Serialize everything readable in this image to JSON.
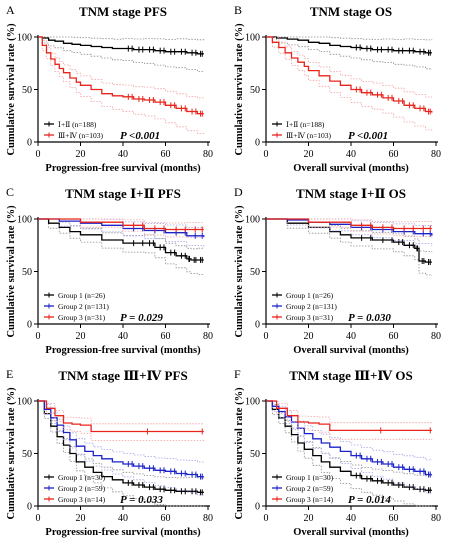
{
  "figure": {
    "colors": {
      "black": "#000000",
      "red": "#e8241c",
      "blue": "#1c24c8",
      "ci_black": "#8c8c8c",
      "ci_red": "#f0a0a0",
      "ci_blue": "#a0a4e8"
    }
  },
  "chart_data": [
    {
      "type": "line",
      "panel": "A",
      "title": "TNM stage PFS",
      "xlabel": "Progression-free survival (months)",
      "ylabel": "Cumulative survival rate (%)",
      "xlim": [
        0,
        80
      ],
      "ylim": [
        0,
        100
      ],
      "xticks": [
        "0",
        "20",
        "40",
        "60",
        "80"
      ],
      "yticks": [
        "0",
        "50",
        "100"
      ],
      "legend": [
        {
          "label": "Ⅰ+Ⅱ (n=188)",
          "color": "#000000"
        },
        {
          "label": "Ⅲ+Ⅳ (n=103)",
          "color": "#e8241c"
        }
      ],
      "pvalue": "P <0.001",
      "series": [
        {
          "color": "#000000",
          "x": [
            0,
            2,
            5,
            8,
            12,
            16,
            20,
            25,
            30,
            35,
            40,
            45,
            50,
            55,
            60,
            65,
            70,
            75,
            78
          ],
          "y": [
            100,
            99,
            97,
            96,
            94,
            93,
            92,
            91,
            90,
            89,
            89,
            88,
            88,
            87,
            86,
            86,
            85,
            84,
            84
          ]
        },
        {
          "color": "#e8241c",
          "x": [
            0,
            2,
            4,
            6,
            8,
            10,
            12,
            15,
            18,
            20,
            25,
            30,
            35,
            40,
            45,
            50,
            55,
            60,
            65,
            70,
            75,
            78
          ],
          "y": [
            100,
            92,
            85,
            79,
            74,
            70,
            66,
            61,
            57,
            54,
            50,
            46,
            44,
            43,
            41,
            40,
            38,
            35,
            32,
            29,
            27,
            27
          ]
        }
      ]
    },
    {
      "type": "line",
      "panel": "B",
      "title": "TNM stage OS",
      "xlabel": "Overall survival (months)",
      "ylabel": "Cumulative survival rate (%)",
      "xlim": [
        0,
        80
      ],
      "ylim": [
        0,
        100
      ],
      "xticks": [
        "0",
        "20",
        "40",
        "60",
        "80"
      ],
      "yticks": [
        "0",
        "50",
        "100"
      ],
      "legend": [
        {
          "label": "Ⅰ+Ⅱ (n=188)",
          "color": "#000000"
        },
        {
          "label": "Ⅲ+Ⅳ (n=103)",
          "color": "#e8241c"
        }
      ],
      "pvalue": "P <0.001",
      "series": [
        {
          "color": "#000000",
          "x": [
            0,
            5,
            10,
            15,
            20,
            25,
            30,
            35,
            40,
            45,
            50,
            55,
            60,
            65,
            70,
            75,
            78
          ],
          "y": [
            100,
            99,
            98,
            97,
            95,
            94,
            92,
            91,
            90,
            89,
            88,
            88,
            87,
            87,
            86,
            85,
            85
          ]
        },
        {
          "color": "#e8241c",
          "x": [
            0,
            3,
            6,
            9,
            12,
            15,
            18,
            20,
            25,
            30,
            35,
            40,
            45,
            50,
            55,
            60,
            65,
            70,
            75,
            78
          ],
          "y": [
            100,
            95,
            90,
            85,
            80,
            76,
            72,
            68,
            63,
            58,
            54,
            50,
            47,
            45,
            42,
            39,
            35,
            32,
            29,
            28
          ]
        }
      ]
    },
    {
      "type": "line",
      "panel": "C",
      "title": "TNM stage Ⅰ+Ⅱ PFS",
      "xlabel": "Progression-free survival (months)",
      "ylabel": "Cumulative survival rate (%)",
      "xlim": [
        0,
        80
      ],
      "ylim": [
        0,
        100
      ],
      "xticks": [
        "0",
        "20",
        "40",
        "60",
        "80"
      ],
      "yticks": [
        "0",
        "50",
        "100"
      ],
      "legend": [
        {
          "label": "Group 1 (n=26)",
          "color": "#000000"
        },
        {
          "label": "Group 2 (n=131)",
          "color": "#1c24c8"
        },
        {
          "label": "Group 3 (n=31)",
          "color": "#e8241c"
        }
      ],
      "pvalue": "P = 0.029",
      "series": [
        {
          "color": "#000000",
          "x": [
            0,
            5,
            10,
            15,
            20,
            30,
            40,
            50,
            55,
            60,
            65,
            70,
            72,
            75,
            78
          ],
          "y": [
            100,
            96,
            92,
            88,
            85,
            80,
            77,
            77,
            73,
            68,
            65,
            62,
            61,
            61,
            61
          ]
        },
        {
          "color": "#1c24c8",
          "x": [
            0,
            10,
            20,
            30,
            40,
            50,
            60,
            70,
            78
          ],
          "y": [
            100,
            98,
            96,
            94,
            91,
            89,
            87,
            84,
            83
          ]
        },
        {
          "color": "#e8241c",
          "x": [
            0,
            20,
            40,
            50,
            60,
            70,
            78
          ],
          "y": [
            100,
            97,
            94,
            91,
            90,
            90,
            90
          ]
        }
      ]
    },
    {
      "type": "line",
      "panel": "D",
      "title": "TNM stage Ⅰ+Ⅱ OS",
      "xlabel": "Overall survival (months)",
      "ylabel": "Cumulative survival rate (%)",
      "xlim": [
        0,
        80
      ],
      "ylim": [
        0,
        100
      ],
      "xticks": [
        "0",
        "20",
        "40",
        "60",
        "80"
      ],
      "yticks": [
        "0",
        "50",
        "100"
      ],
      "legend": [
        {
          "label": "Group 1 (n=26)",
          "color": "#000000"
        },
        {
          "label": "Group 2 (n=131)",
          "color": "#1c24c8"
        },
        {
          "label": "Group 3 (n=31)",
          "color": "#e8241c"
        }
      ],
      "pvalue": "P = 0.030",
      "series": [
        {
          "color": "#000000",
          "x": [
            0,
            10,
            20,
            30,
            35,
            40,
            50,
            60,
            65,
            70,
            72,
            75,
            78
          ],
          "y": [
            100,
            96,
            92,
            88,
            85,
            82,
            80,
            78,
            75,
            72,
            60,
            59,
            59
          ]
        },
        {
          "color": "#1c24c8",
          "x": [
            0,
            10,
            20,
            30,
            40,
            50,
            60,
            70,
            78
          ],
          "y": [
            100,
            99,
            97,
            95,
            92,
            90,
            88,
            86,
            84
          ]
        },
        {
          "color": "#e8241c",
          "x": [
            0,
            20,
            40,
            50,
            60,
            70,
            78
          ],
          "y": [
            100,
            97,
            94,
            92,
            91,
            91,
            91
          ]
        }
      ]
    },
    {
      "type": "line",
      "panel": "E",
      "title": "TNM stage Ⅲ+Ⅳ PFS",
      "xlabel": "Progression-free survival (months)",
      "ylabel": "Cumulative survival rate (%)",
      "xlim": [
        0,
        80
      ],
      "ylim": [
        0,
        100
      ],
      "xticks": [
        "0",
        "20",
        "40",
        "60",
        "80"
      ],
      "yticks": [
        "0",
        "50",
        "100"
      ],
      "legend": [
        {
          "label": "Group 1 (n=30)",
          "color": "#000000"
        },
        {
          "label": "Group 2 (n=59)",
          "color": "#1c24c8"
        },
        {
          "label": "Group 3 (n=14)",
          "color": "#e8241c"
        }
      ],
      "pvalue": "P = 0.033",
      "series": [
        {
          "color": "#000000",
          "x": [
            0,
            3,
            6,
            9,
            12,
            15,
            18,
            22,
            26,
            30,
            35,
            40,
            45,
            50,
            55,
            60,
            65,
            70,
            75,
            78
          ],
          "y": [
            100,
            88,
            76,
            66,
            58,
            50,
            42,
            37,
            32,
            28,
            25,
            22,
            20,
            18,
            16,
            15,
            14,
            14,
            13,
            13
          ]
        },
        {
          "color": "#1c24c8",
          "x": [
            0,
            3,
            6,
            9,
            12,
            15,
            18,
            22,
            26,
            30,
            35,
            40,
            45,
            50,
            55,
            60,
            65,
            70,
            75,
            78
          ],
          "y": [
            100,
            92,
            84,
            77,
            70,
            63,
            57,
            52,
            48,
            45,
            42,
            40,
            38,
            36,
            34,
            33,
            31,
            30,
            28,
            28
          ]
        },
        {
          "color": "#e8241c",
          "x": [
            0,
            4,
            8,
            12,
            16,
            20,
            25,
            78
          ],
          "y": [
            100,
            93,
            86,
            79,
            78,
            77,
            71,
            71
          ]
        }
      ]
    },
    {
      "type": "line",
      "panel": "F",
      "title": "TNM stage Ⅲ+Ⅳ OS",
      "xlabel": "Overall survival (months)",
      "ylabel": "Cumulative survival rate (%)",
      "xlim": [
        0,
        80
      ],
      "ylim": [
        0,
        100
      ],
      "xticks": [
        "0",
        "20",
        "40",
        "60",
        "80"
      ],
      "yticks": [
        "0",
        "50",
        "100"
      ],
      "legend": [
        {
          "label": "Group 1 (n=30)",
          "color": "#000000"
        },
        {
          "label": "Group 2 (n=59)",
          "color": "#1c24c8"
        },
        {
          "label": "Group 3 (n=14)",
          "color": "#e8241c"
        }
      ],
      "pvalue": "P = 0.014",
      "series": [
        {
          "color": "#000000",
          "x": [
            0,
            3,
            6,
            9,
            12,
            15,
            18,
            22,
            26,
            30,
            35,
            40,
            45,
            50,
            55,
            60,
            65,
            70,
            75,
            78
          ],
          "y": [
            100,
            92,
            84,
            76,
            68,
            60,
            54,
            48,
            42,
            37,
            33,
            29,
            26,
            24,
            22,
            20,
            18,
            16,
            15,
            15
          ]
        },
        {
          "color": "#1c24c8",
          "x": [
            0,
            3,
            6,
            9,
            12,
            15,
            18,
            22,
            26,
            30,
            35,
            40,
            45,
            50,
            55,
            60,
            65,
            70,
            75,
            78
          ],
          "y": [
            100,
            95,
            90,
            85,
            80,
            74,
            69,
            64,
            60,
            56,
            52,
            48,
            45,
            42,
            40,
            37,
            35,
            33,
            30,
            30
          ]
        },
        {
          "color": "#e8241c",
          "x": [
            0,
            5,
            10,
            15,
            20,
            25,
            30,
            78
          ],
          "y": [
            100,
            93,
            86,
            80,
            79,
            78,
            72,
            72
          ]
        }
      ]
    }
  ]
}
